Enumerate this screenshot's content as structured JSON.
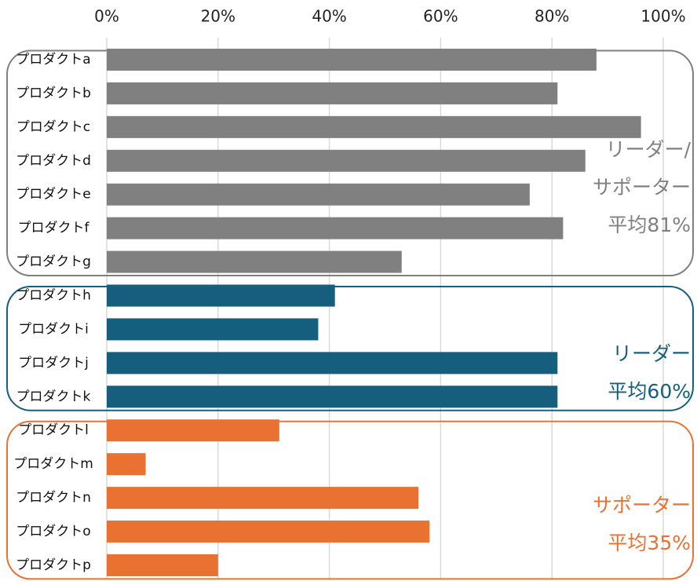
{
  "chart_data": {
    "type": "bar",
    "orientation": "horizontal",
    "xlim": [
      0,
      100
    ],
    "xticks": [
      {
        "value": 0,
        "label": "0%"
      },
      {
        "value": 20,
        "label": "20%"
      },
      {
        "value": 40,
        "label": "40%"
      },
      {
        "value": 60,
        "label": "60%"
      },
      {
        "value": 80,
        "label": "80%"
      },
      {
        "value": 100,
        "label": "100%"
      }
    ],
    "grid": true,
    "groups": [
      {
        "annotation": [
          "リーダー/",
          "サポーター",
          "平均81%"
        ],
        "color": "#808080",
        "categories": [
          "プロダクトa",
          "プロダクトb",
          "プロダクトc",
          "プロダクトd",
          "プロダクトe",
          "プロダクトf",
          "プロダクトg"
        ],
        "values": [
          88,
          81,
          96,
          86,
          76,
          82,
          53
        ]
      },
      {
        "annotation": [
          "リーダー",
          "平均60%"
        ],
        "color": "#165e7e",
        "categories": [
          "プロダクトh",
          "プロダクトi",
          "プロダクトj",
          "プロダクトk"
        ],
        "values": [
          41,
          38,
          81,
          81
        ]
      },
      {
        "annotation": [
          "サポーター",
          "平均35%"
        ],
        "color": "#e97132",
        "categories": [
          "プロダクトl",
          "プロダクトm",
          "プロダクトn",
          "プロダクトo",
          "プロダクトp"
        ],
        "values": [
          31,
          7,
          56,
          58,
          20
        ]
      }
    ]
  }
}
